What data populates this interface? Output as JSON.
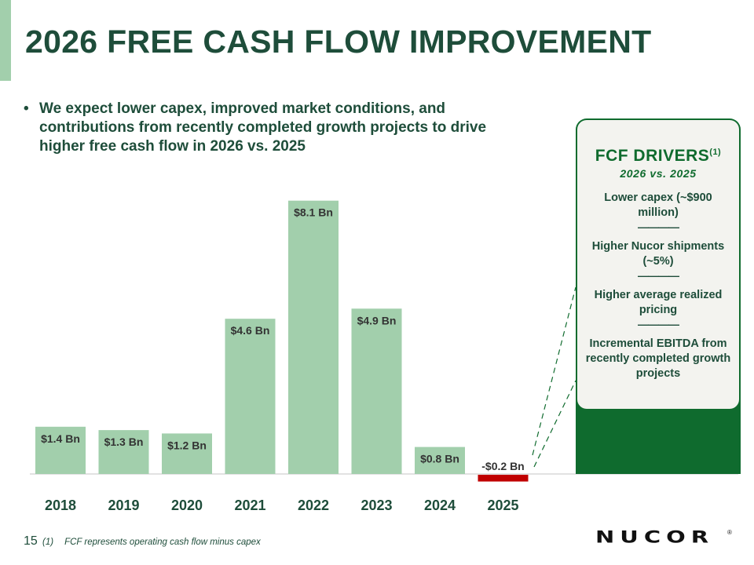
{
  "header": {
    "title": "2026 FREE CASH FLOW IMPROVEMENT"
  },
  "bullet": {
    "marker": "•",
    "text": "We expect lower capex, improved market conditions, and contributions from recently completed growth projects to drive higher free cash flow in 2026 vs. 2025"
  },
  "chart_data": {
    "type": "bar",
    "title": "",
    "xlabel": "",
    "ylabel": "",
    "unit": "$ Bn",
    "categories": [
      "2018",
      "2019",
      "2020",
      "2021",
      "2022",
      "2023",
      "2024",
      "2025"
    ],
    "values": [
      1.4,
      1.3,
      1.2,
      4.6,
      8.1,
      4.9,
      0.8,
      -0.2
    ],
    "data_labels": [
      "$1.4 Bn",
      "$1.3 Bn",
      "$1.2 Bn",
      "$4.6 Bn",
      "$8.1 Bn",
      "$4.9 Bn",
      "$0.8 Bn",
      "-$0.2 Bn"
    ],
    "ylim": [
      -0.3,
      8.6
    ],
    "grid": false,
    "legend": "none",
    "colors": {
      "positive": "#a2cfac",
      "negative": "#c00000",
      "axis": "#d9d9d9"
    }
  },
  "drivers": {
    "title": "FCF DRIVERS",
    "title_superscript": "(1)",
    "subtitle": "2026 vs. 2025",
    "items": [
      "Lower capex (~$900 million)",
      "Higher Nucor shipments (~5%)",
      "Higher average realized pricing",
      "Incremental EBITDA from recently completed growth projects"
    ],
    "separator": "————",
    "colors": {
      "panel": "#0f6b2e",
      "card": "#f3f3ef",
      "connector": "#0f6b2e"
    }
  },
  "footer": {
    "page_number": "15",
    "footnote_marker": "(1)",
    "footnote_text": "FCF represents operating cash flow minus capex",
    "logo_text": "NUCOR",
    "logo_mark": "®"
  }
}
